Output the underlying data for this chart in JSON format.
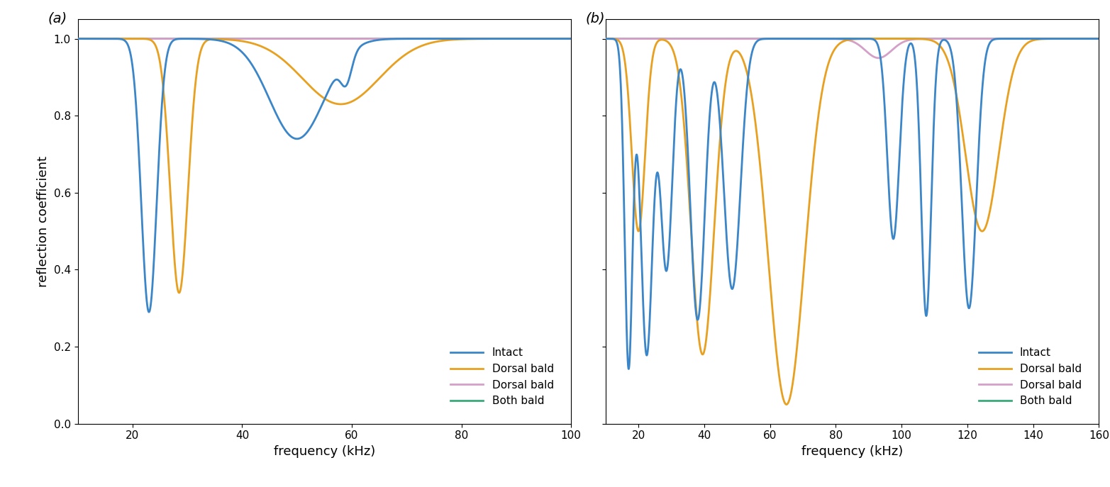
{
  "panel_a": {
    "title": "(a)",
    "xlabel": "frequency (kHz)",
    "ylabel": "reflection coefficient",
    "xlim": [
      10,
      100
    ],
    "ylim": [
      0,
      1.05
    ],
    "xticks": [
      20,
      40,
      60,
      80,
      100
    ],
    "yticks": [
      0,
      0.2,
      0.4,
      0.6,
      0.8,
      1.0
    ]
  },
  "panel_b": {
    "title": "(b)",
    "xlabel": "frequency (kHz)",
    "ylabel": "",
    "xlim": [
      10,
      160
    ],
    "ylim": [
      0,
      1.05
    ],
    "xticks": [
      20,
      40,
      60,
      80,
      100,
      120,
      140,
      160
    ],
    "yticks": [
      0,
      0.2,
      0.4,
      0.6,
      0.8,
      1.0
    ]
  },
  "legend_labels": [
    "Intact",
    "Dorsal bald",
    "Dorsal bald",
    "Both bald"
  ],
  "line_colors": [
    "#3a86c8",
    "#e8a020",
    "#d4a0c8",
    "#3aaa7a"
  ],
  "linewidth": 2.0
}
